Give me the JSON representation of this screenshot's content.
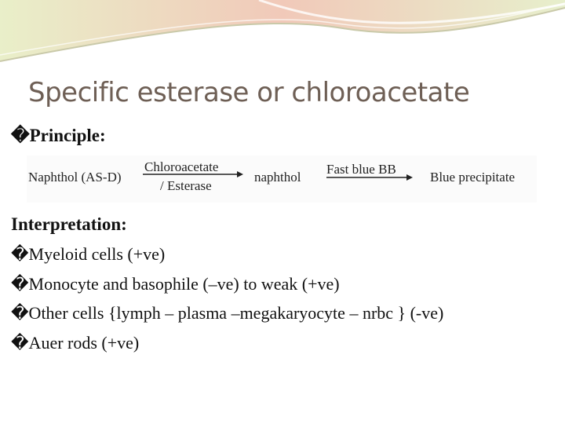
{
  "title": "Specific esterase or chloroacetate",
  "principle_heading": "�Principle:",
  "reaction": {
    "reactant": "Naphthol (AS-D)",
    "enzyme_line1": "Chloroacetate",
    "enzyme_line2": "/ Esterase",
    "intermediate": "naphthol",
    "reagent": "Fast blue BB",
    "product": "Blue precipitate"
  },
  "interpretation": {
    "heading": "Interpretation:",
    "items": [
      "�Myeloid cells (+ve)",
      "�Monocyte and basophile (–ve) to weak (+ve)",
      "�Other cells {lymph – plasma –megakaryocyte – nrbc } (-ve)",
      "�Auer rods (+ve)"
    ]
  }
}
